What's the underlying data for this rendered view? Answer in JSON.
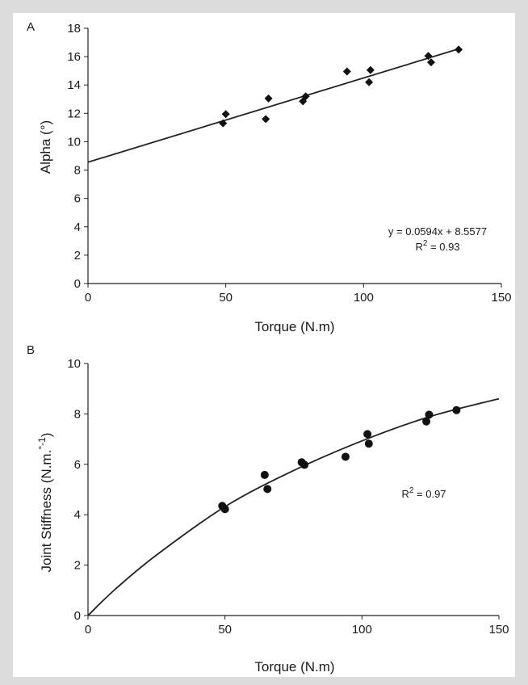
{
  "chart_data": [
    {
      "panel": "A",
      "type": "scatter",
      "xlabel": "Torque (N.m)",
      "ylabel": "Alpha (°)",
      "xlim": [
        0,
        150
      ],
      "ylim": [
        0,
        18
      ],
      "xticks": [
        0,
        50,
        100,
        150
      ],
      "yticks": [
        0,
        2,
        4,
        6,
        8,
        10,
        12,
        14,
        16,
        18
      ],
      "grid": false,
      "marker": "diamond",
      "points": [
        {
          "x": 49,
          "y": 11.3
        },
        {
          "x": 50,
          "y": 11.95
        },
        {
          "x": 64.5,
          "y": 11.6
        },
        {
          "x": 65.5,
          "y": 13.05
        },
        {
          "x": 78,
          "y": 12.85
        },
        {
          "x": 79,
          "y": 13.2
        },
        {
          "x": 94,
          "y": 14.95
        },
        {
          "x": 102,
          "y": 14.2
        },
        {
          "x": 102.5,
          "y": 15.05
        },
        {
          "x": 123.5,
          "y": 16.05
        },
        {
          "x": 124.5,
          "y": 15.6
        },
        {
          "x": 134.5,
          "y": 16.5
        }
      ],
      "fit": {
        "type": "linear",
        "slope": 0.0594,
        "intercept": 8.5577,
        "x_range": [
          0,
          135
        ]
      },
      "equation": "y = 0.0594x + 8.5577",
      "r2_prefix": "R",
      "r2_sup": "2",
      "r2_suffix": " = 0.93"
    },
    {
      "panel": "B",
      "type": "scatter",
      "xlabel": "Torque (N.m)",
      "ylabel": "Joint Stiffness (N.m.",
      "ylabel_sup": "°-1",
      "ylabel_close": ")",
      "xlim": [
        0,
        150
      ],
      "ylim": [
        0,
        10
      ],
      "xticks": [
        0,
        50,
        100,
        150
      ],
      "yticks": [
        0,
        2,
        4,
        6,
        8,
        10
      ],
      "grid": false,
      "marker": "circle",
      "points": [
        {
          "x": 49,
          "y": 4.35
        },
        {
          "x": 50,
          "y": 4.22
        },
        {
          "x": 64.5,
          "y": 5.58
        },
        {
          "x": 65.5,
          "y": 5.02
        },
        {
          "x": 78,
          "y": 6.08
        },
        {
          "x": 79,
          "y": 5.98
        },
        {
          "x": 94,
          "y": 6.3
        },
        {
          "x": 102,
          "y": 7.2
        },
        {
          "x": 102.5,
          "y": 6.82
        },
        {
          "x": 123.5,
          "y": 7.7
        },
        {
          "x": 124.5,
          "y": 7.97
        },
        {
          "x": 134.5,
          "y": 8.15
        }
      ],
      "fit": {
        "type": "curve",
        "x": [
          0,
          10,
          25,
          50,
          75,
          100,
          125,
          150
        ],
        "y": [
          0,
          1.05,
          2.4,
          4.32,
          5.75,
          6.93,
          7.9,
          8.6
        ]
      },
      "r2_prefix": "R",
      "r2_sup": "2",
      "r2_suffix": " = 0.97"
    }
  ]
}
